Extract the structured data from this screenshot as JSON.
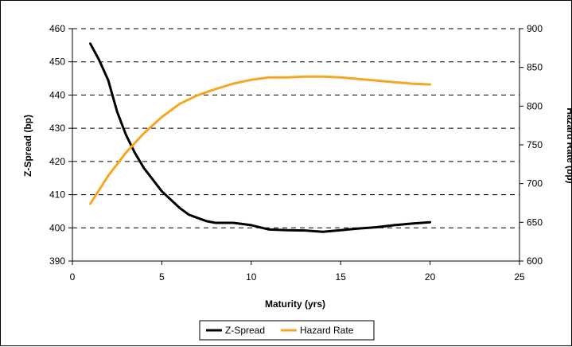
{
  "chart_data": {
    "type": "line",
    "xlabel": "Maturity (yrs)",
    "ylabel_left": "Z-Spread (bp)",
    "ylabel_right": "Hazard Rate (bp)",
    "xlim": [
      0,
      25
    ],
    "xticks": [
      0,
      5,
      10,
      15,
      20,
      25
    ],
    "ylim_left": [
      390,
      460
    ],
    "yticks_left": [
      390,
      400,
      410,
      420,
      430,
      440,
      450,
      460
    ],
    "ylim_right": [
      600,
      900
    ],
    "yticks_right": [
      600,
      650,
      700,
      750,
      800,
      850,
      900
    ],
    "grid": "horizontal dashed",
    "legend_position": "bottom",
    "series": [
      {
        "name": "Z-Spread",
        "axis": "left",
        "color": "#000000",
        "x": [
          1,
          1.5,
          2,
          2.5,
          3,
          3.5,
          4,
          4.5,
          5,
          5.5,
          6,
          6.5,
          7,
          7.5,
          8,
          9,
          10,
          11,
          12,
          13,
          14,
          15,
          16,
          17,
          18,
          19,
          20
        ],
        "y": [
          455.5,
          450.5,
          444.5,
          435,
          428,
          422.5,
          418,
          414.5,
          411,
          408.5,
          406,
          404,
          403,
          402,
          401.5,
          401.5,
          400.8,
          399.5,
          399.3,
          399.2,
          398.8,
          399.3,
          399.8,
          400.2,
          400.8,
          401.3,
          401.7
        ]
      },
      {
        "name": "Hazard Rate",
        "axis": "right",
        "color": "#F5A623",
        "x": [
          1,
          2,
          3,
          4,
          5,
          6,
          7,
          8,
          9,
          10,
          11,
          12,
          13,
          14,
          15,
          16,
          17,
          18,
          19,
          20
        ],
        "y": [
          674,
          710,
          740,
          765,
          786,
          803,
          814,
          822,
          829,
          834,
          837,
          837,
          838,
          838,
          837,
          835,
          833,
          831,
          829,
          828
        ]
      }
    ]
  }
}
